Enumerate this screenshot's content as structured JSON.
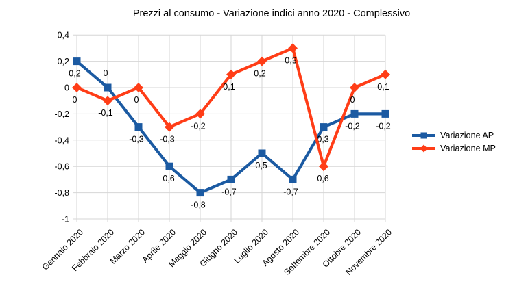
{
  "chart_data": {
    "type": "line",
    "title": "Prezzi al consumo - Variazione indici anno 2020 - Complessivo",
    "categories": [
      "Gennaio 2020",
      "Febbraio 2020",
      "Marzo 2020",
      "Aprile 2020",
      "Maggio 2020",
      "Giugno 2020",
      "Luglio 2020",
      "Agosto 2020",
      "Settembre 2020",
      "Ottobre 2020",
      "Novembre 2020"
    ],
    "series": [
      {
        "name": "Variazione AP",
        "color": "#1B5AA2",
        "marker": "square",
        "values": [
          0.2,
          0,
          -0.3,
          -0.6,
          -0.8,
          -0.7,
          -0.5,
          -0.7,
          -0.3,
          -0.2,
          -0.2
        ],
        "labels": [
          "0,2",
          "0",
          "-0,3",
          "-0,6",
          "-0,8",
          "-0,7",
          "-0,5",
          "-0,7",
          "-0,3",
          "-0,2",
          "-0,2"
        ]
      },
      {
        "name": "Variazione MP",
        "color": "#FF3D17",
        "marker": "diamond",
        "values": [
          0,
          -0.1,
          0,
          -0.3,
          -0.2,
          0.1,
          0.2,
          0.3,
          -0.6,
          0,
          0.1
        ],
        "labels": [
          "0",
          "-0,1",
          "0",
          "-0,3",
          "-0,2",
          "0,1",
          "0,2",
          "0,3",
          "-0,6",
          "0",
          "0,1"
        ]
      }
    ],
    "y_axis": {
      "min": -1,
      "max": 0.4,
      "step": 0.2,
      "tick_labels": [
        "0,4",
        "0,2",
        "0",
        "-0,2",
        "-0,4",
        "-0,6",
        "-0,8",
        "-1"
      ]
    },
    "x_label_rotation_deg": 45,
    "grid": true,
    "legend_position": "right",
    "colors": {
      "grid": "#d6d6d6",
      "text": "#000000",
      "background": "#ffffff"
    }
  }
}
